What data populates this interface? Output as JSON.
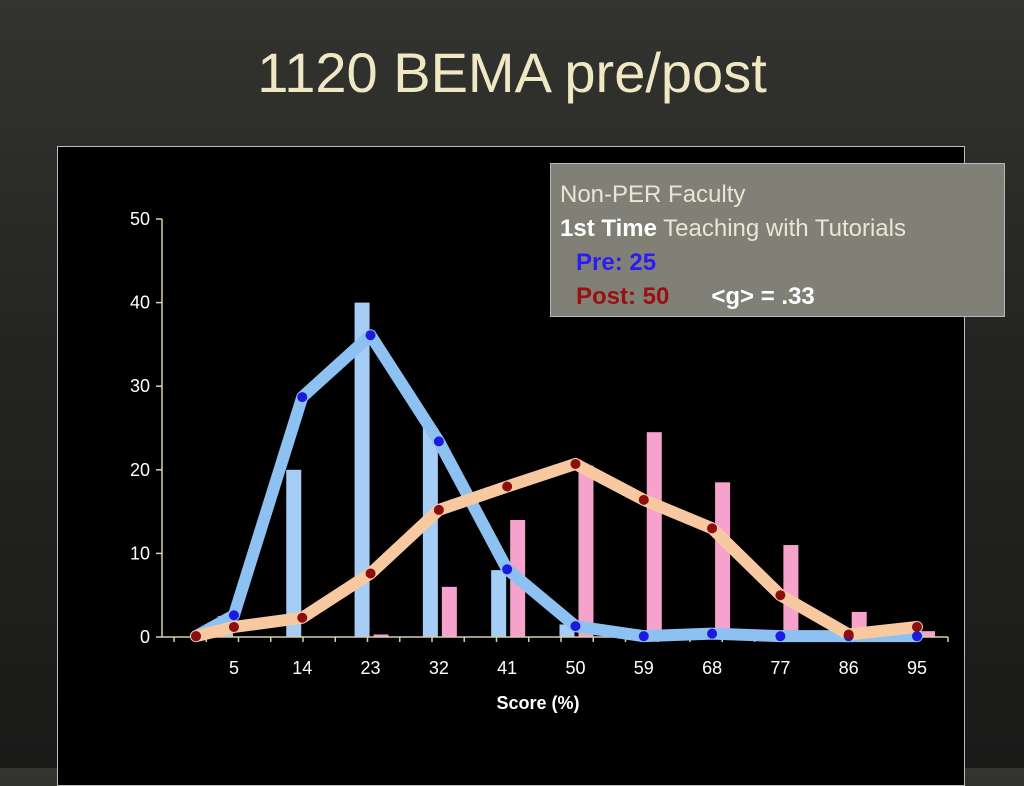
{
  "slide": {
    "title": "1120 BEMA pre/post"
  },
  "annotation": {
    "line1": "Non-PER Faculty",
    "line2_bold": "1st Time",
    "line2_rest": "Teaching with Tutorials",
    "pre_label": "Pre: 25",
    "post_label": "Post: 50",
    "gain_label": "<g> = .33"
  },
  "chart_data": {
    "type": "bar",
    "xlabel": "Score (%)",
    "ylabel": "",
    "ylim": [
      0,
      50
    ],
    "yticks": [
      0,
      10,
      20,
      30,
      40,
      50
    ],
    "categories": [
      "5",
      "14",
      "23",
      "32",
      "41",
      "50",
      "59",
      "68",
      "77",
      "86",
      "95"
    ],
    "grid": false,
    "colors": {
      "pre_bar": "#a6cdf6",
      "post_bar": "#f5a3cc",
      "pre_line": "#8cc1f2",
      "post_line": "#f8c9a0",
      "pre_dot": "#1b1be0",
      "post_dot": "#8b0f0f",
      "axis": "#d8d0a8"
    },
    "series": [
      {
        "type": "bar",
        "values": [
          2.5,
          20,
          40,
          25,
          8,
          1.5,
          0,
          0,
          0,
          0,
          0
        ]
      },
      {
        "type": "bar",
        "values": [
          0,
          0,
          0.3,
          6,
          14,
          20.5,
          24.5,
          18.5,
          11,
          3,
          0.7
        ]
      },
      {
        "type": "line",
        "x": [
          0,
          5,
          14,
          23,
          32,
          41,
          50,
          59,
          68,
          77,
          86,
          95
        ],
        "values": [
          0.1,
          2.6,
          28.7,
          36.1,
          23.4,
          8.1,
          1.3,
          0.1,
          0.4,
          0.1,
          0.1,
          0.1
        ]
      },
      {
        "type": "line",
        "x": [
          0,
          5,
          14,
          23,
          32,
          41,
          50,
          59,
          68,
          77,
          86,
          95
        ],
        "values": [
          0.1,
          1.2,
          2.3,
          7.6,
          15.2,
          18.0,
          20.7,
          16.4,
          13.0,
          5.0,
          0.3,
          1.2
        ]
      }
    ]
  }
}
